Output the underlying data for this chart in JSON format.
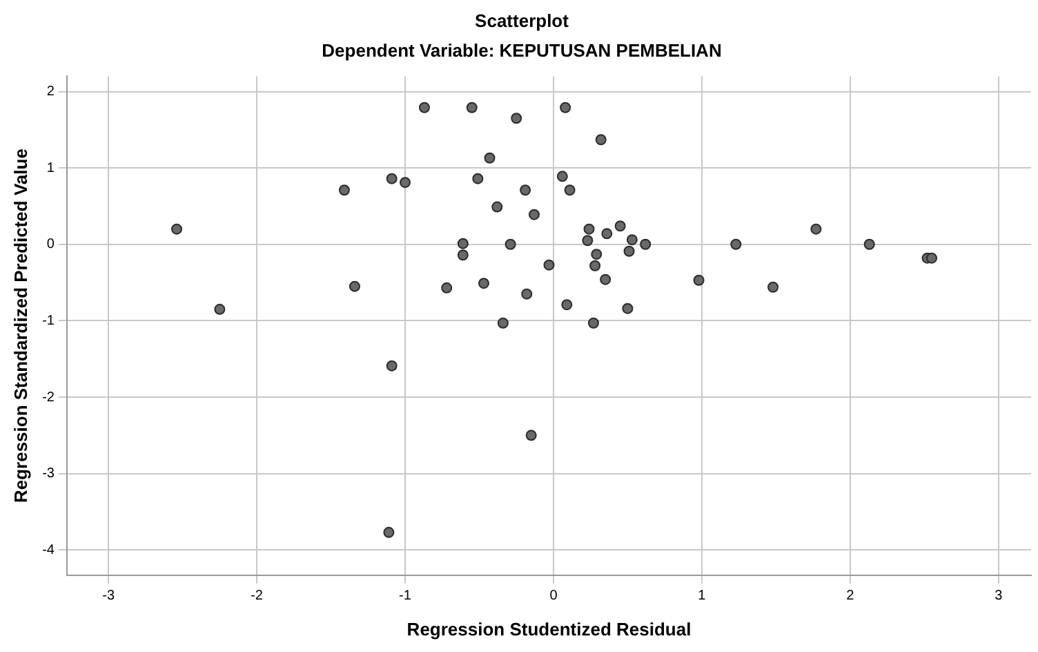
{
  "chart_data": {
    "type": "scatter",
    "title": "Scatterplot",
    "subtitle": "Dependent Variable: KEPUTUSAN PEMBELIAN",
    "xlabel": "Regression Studentized Residual",
    "ylabel": "Regression Standardized Predicted Value",
    "xlim": [
      -3.28,
      3.22
    ],
    "ylim": [
      -4.33,
      2.2
    ],
    "xticks": [
      -3,
      -2,
      -1,
      0,
      1,
      2,
      3
    ],
    "yticks": [
      -4,
      -3,
      -2,
      -1,
      0,
      1,
      2
    ],
    "grid": true,
    "legend": false,
    "marker": "circle",
    "series": [
      {
        "color": "#696969",
        "x": [
          -2.54,
          -2.25,
          -1.41,
          -0.87,
          -0.55,
          -0.25,
          -0.43,
          -1.09,
          -1.0,
          -0.51,
          -0.19,
          -0.38,
          -0.13,
          -0.61,
          -0.29,
          -0.61,
          -0.03,
          -1.34,
          -0.72,
          -0.47,
          -0.18,
          -0.34,
          0.08,
          0.32,
          0.06,
          0.11,
          0.24,
          0.23,
          0.36,
          0.45,
          0.53,
          0.62,
          0.51,
          0.29,
          0.28,
          0.35,
          0.98,
          1.48,
          1.77,
          1.23,
          2.13,
          2.52,
          2.55,
          0.09,
          0.5,
          0.27,
          -1.09,
          -0.15,
          -1.11
        ],
        "values": [
          0.2,
          -0.85,
          0.71,
          1.79,
          1.79,
          1.65,
          1.13,
          0.86,
          0.81,
          0.86,
          0.71,
          0.49,
          0.39,
          0.01,
          0.0,
          -0.14,
          -0.27,
          -0.55,
          -0.57,
          -0.51,
          -0.65,
          -1.03,
          1.79,
          1.37,
          0.89,
          0.71,
          0.2,
          0.05,
          0.14,
          0.24,
          0.06,
          0.0,
          -0.09,
          -0.13,
          -0.28,
          -0.46,
          -0.47,
          -0.56,
          0.2,
          0.0,
          0.0,
          -0.18,
          -0.18,
          -0.79,
          -0.84,
          -1.03,
          -1.59,
          -2.5,
          -3.77
        ]
      }
    ]
  }
}
